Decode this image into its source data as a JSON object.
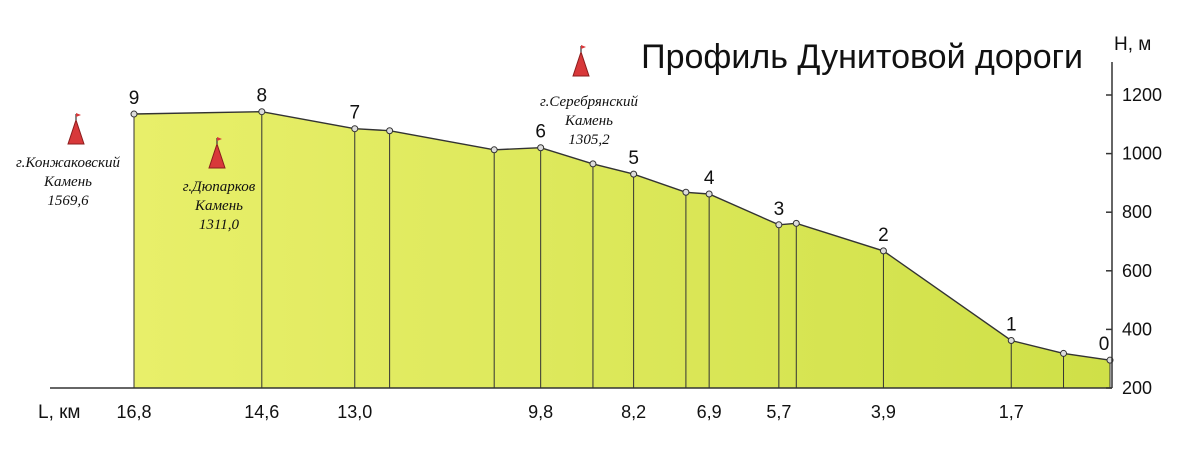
{
  "chart_data": {
    "type": "area",
    "title": "Профиль Дунитовой дороги",
    "xlabel": "L, км",
    "ylabel": "H, м",
    "ylim": [
      200,
      1300
    ],
    "yticks": [
      "1200",
      "1000",
      "800",
      "600",
      "400",
      "200"
    ],
    "x_reversed": true,
    "points": [
      {
        "x": 0.0,
        "y": 295
      },
      {
        "x": 0.8,
        "y": 318
      },
      {
        "x": 1.7,
        "y": 362
      },
      {
        "x": 3.9,
        "y": 668
      },
      {
        "x": 5.4,
        "y": 762
      },
      {
        "x": 5.7,
        "y": 757
      },
      {
        "x": 6.9,
        "y": 862
      },
      {
        "x": 7.3,
        "y": 868
      },
      {
        "x": 8.2,
        "y": 930
      },
      {
        "x": 8.9,
        "y": 965
      },
      {
        "x": 9.8,
        "y": 1020
      },
      {
        "x": 10.6,
        "y": 1013
      },
      {
        "x": 12.4,
        "y": 1078
      },
      {
        "x": 13.0,
        "y": 1085
      },
      {
        "x": 14.6,
        "y": 1143
      },
      {
        "x": 16.8,
        "y": 1135
      }
    ],
    "x_tick_labels": [
      {
        "x": 16.8,
        "label": "16,8"
      },
      {
        "x": 14.6,
        "label": "14,6"
      },
      {
        "x": 13.0,
        "label": "13,0"
      },
      {
        "x": 9.8,
        "label": "9,8"
      },
      {
        "x": 8.2,
        "label": "8,2"
      },
      {
        "x": 6.9,
        "label": "6,9"
      },
      {
        "x": 5.7,
        "label": "5,7"
      },
      {
        "x": 3.9,
        "label": "3,9"
      },
      {
        "x": 1.7,
        "label": "1,7"
      }
    ],
    "point_labels": [
      {
        "x": 16.8,
        "y": 1135,
        "label": "9"
      },
      {
        "x": 14.6,
        "y": 1143,
        "label": "8"
      },
      {
        "x": 13.0,
        "y": 1085,
        "label": "7"
      },
      {
        "x": 9.8,
        "y": 1020,
        "label": "6"
      },
      {
        "x": 8.2,
        "y": 930,
        "label": "5"
      },
      {
        "x": 6.9,
        "y": 862,
        "label": "4"
      },
      {
        "x": 5.7,
        "y": 757,
        "label": "3"
      },
      {
        "x": 3.9,
        "y": 668,
        "label": "2"
      },
      {
        "x": 1.7,
        "y": 362,
        "label": "1"
      },
      {
        "x": 0.0,
        "y": 295,
        "label": "0"
      }
    ],
    "peaks": [
      {
        "name": "г.Конжаковский",
        "kind": "Камень",
        "height": "1569,6"
      },
      {
        "name": "г.Дюпарков",
        "kind": "Камень",
        "height": "1311,0"
      },
      {
        "name": "г.Серебрянский",
        "kind": "Камень",
        "height": "1305,2"
      }
    ],
    "colors": {
      "fill_left": "#e8ef6a",
      "fill_right": "#cfe048",
      "fill_top": "#eef37a",
      "line": "#333333",
      "marker_fill": "#dddddd",
      "peak_icon": "#d8383a"
    }
  }
}
